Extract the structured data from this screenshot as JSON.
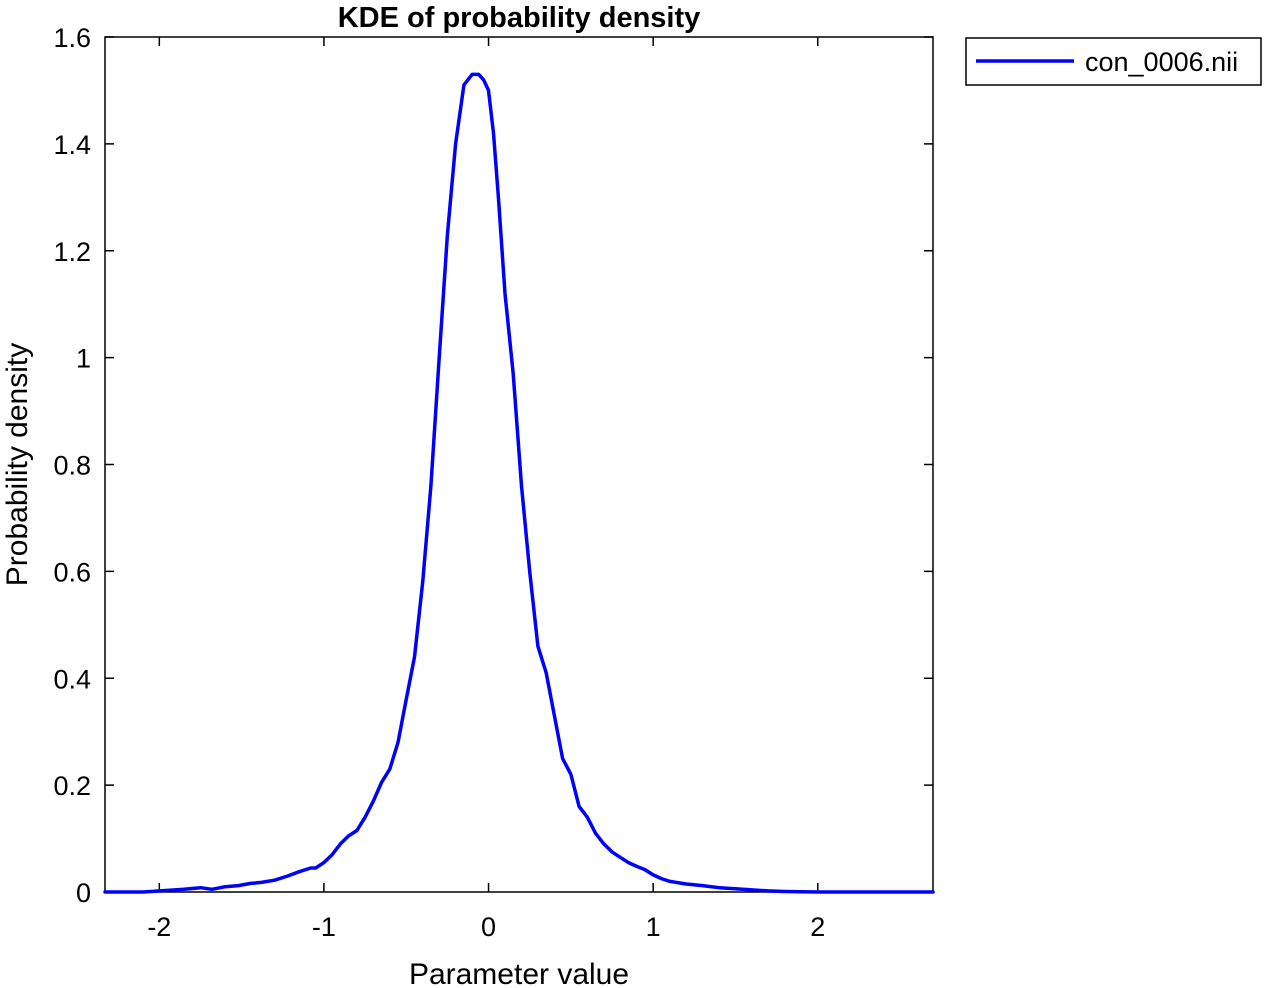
{
  "chart_data": {
    "type": "line",
    "title": "KDE of probability density",
    "xlabel": "Parameter value",
    "ylabel": "Probability density",
    "xlim": [
      -2.33,
      2.7
    ],
    "ylim": [
      0,
      1.6
    ],
    "xticks": [
      -2,
      -1,
      0,
      1,
      2
    ],
    "xtick_labels": [
      "-2",
      "-1",
      "0",
      "1",
      "2"
    ],
    "yticks": [
      0,
      0.2,
      0.4,
      0.6,
      0.8,
      1,
      1.2,
      1.4,
      1.6
    ],
    "ytick_labels": [
      "0",
      "0.2",
      "0.4",
      "0.6",
      "0.8",
      "1",
      "1.2",
      "1.4",
      "1.6"
    ],
    "grid": false,
    "legend_position": "outside-top-right",
    "series": [
      {
        "name": "con_0006.nii",
        "color": "#0000ff",
        "x": [
          -2.33,
          -2.1,
          -1.95,
          -1.85,
          -1.75,
          -1.68,
          -1.6,
          -1.52,
          -1.45,
          -1.38,
          -1.3,
          -1.22,
          -1.15,
          -1.08,
          -1.05,
          -1.0,
          -0.95,
          -0.9,
          -0.85,
          -0.8,
          -0.75,
          -0.7,
          -0.65,
          -0.6,
          -0.55,
          -0.5,
          -0.45,
          -0.4,
          -0.35,
          -0.3,
          -0.25,
          -0.2,
          -0.15,
          -0.1,
          -0.06,
          -0.03,
          0.0,
          0.03,
          0.06,
          0.1,
          0.15,
          0.2,
          0.25,
          0.3,
          0.35,
          0.4,
          0.45,
          0.5,
          0.55,
          0.6,
          0.65,
          0.7,
          0.75,
          0.8,
          0.85,
          0.9,
          0.95,
          1.0,
          1.05,
          1.1,
          1.2,
          1.3,
          1.4,
          1.5,
          1.6,
          1.7,
          1.8,
          2.0,
          2.3,
          2.7
        ],
        "y": [
          0.0,
          0.0,
          0.003,
          0.005,
          0.008,
          0.005,
          0.01,
          0.012,
          0.016,
          0.018,
          0.022,
          0.03,
          0.038,
          0.045,
          0.045,
          0.055,
          0.07,
          0.09,
          0.105,
          0.115,
          0.14,
          0.17,
          0.205,
          0.23,
          0.28,
          0.36,
          0.44,
          0.58,
          0.76,
          1.0,
          1.23,
          1.4,
          1.51,
          1.53,
          1.53,
          1.52,
          1.5,
          1.42,
          1.3,
          1.12,
          0.97,
          0.76,
          0.6,
          0.46,
          0.41,
          0.33,
          0.25,
          0.22,
          0.16,
          0.14,
          0.11,
          0.09,
          0.075,
          0.065,
          0.055,
          0.048,
          0.042,
          0.032,
          0.025,
          0.02,
          0.015,
          0.012,
          0.008,
          0.006,
          0.004,
          0.002,
          0.001,
          0.0,
          0.0,
          0.0
        ]
      }
    ]
  }
}
